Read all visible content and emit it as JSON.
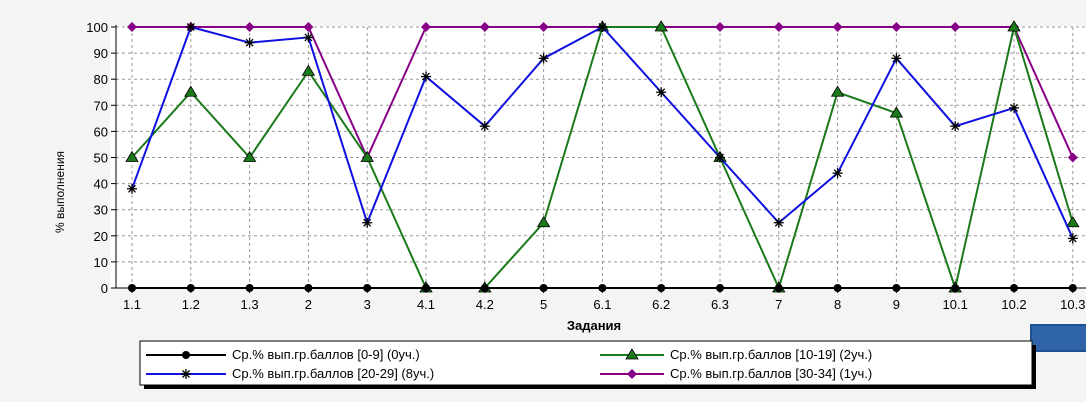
{
  "chart_data": {
    "type": "line",
    "title": "",
    "xlabel": "Задания",
    "ylabel": "% выполнения",
    "ylim": [
      0,
      100
    ],
    "yticks": [
      0,
      10,
      20,
      30,
      40,
      50,
      60,
      70,
      80,
      90,
      100
    ],
    "grid": true,
    "legend_position": "bottom",
    "categories": [
      "1.1",
      "1.2",
      "1.3",
      "2",
      "3",
      "4.1",
      "4.2",
      "5",
      "6.1",
      "6.2",
      "6.3",
      "7",
      "8",
      "9",
      "10.1",
      "10.2",
      "10.3"
    ],
    "series": [
      {
        "name": "Ср.% вып.гр.баллов [0-9] (0уч.)",
        "color": "#000000",
        "marker": "circle",
        "values": [
          0,
          0,
          0,
          0,
          0,
          0,
          0,
          0,
          0,
          0,
          0,
          0,
          0,
          0,
          0,
          0,
          0
        ]
      },
      {
        "name": "Ср.% вып.гр.баллов [10-19] (2уч.)",
        "color": "#1a7a1a",
        "marker": "triangle",
        "values": [
          50,
          75,
          50,
          83,
          50,
          0,
          0,
          25,
          100,
          100,
          50,
          0,
          75,
          67,
          0,
          100,
          25
        ]
      },
      {
        "name": "Ср.% вып.гр.баллов [20-29] (8уч.)",
        "color": "#1010e0",
        "marker": "asterisk",
        "values": [
          38,
          100,
          94,
          96,
          25,
          81,
          62,
          88,
          100,
          75,
          50,
          25,
          44,
          88,
          62,
          69,
          19
        ]
      },
      {
        "name": "Ср.% вып.гр.баллов [30-34] (1уч.)",
        "color": "#880088",
        "marker": "diamond",
        "values": [
          100,
          100,
          100,
          100,
          50,
          100,
          100,
          100,
          100,
          100,
          100,
          100,
          100,
          100,
          100,
          100,
          50
        ]
      }
    ]
  }
}
